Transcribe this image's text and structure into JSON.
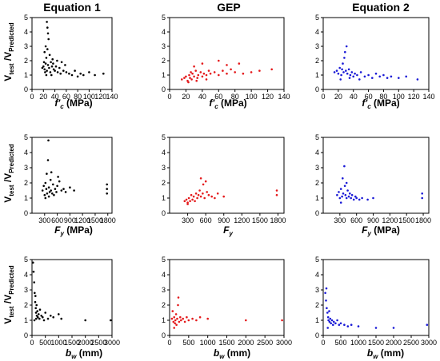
{
  "figure": {
    "column_titles": [
      "Equation 1",
      "GEP",
      "Equation 2"
    ],
    "y_label_main": "V",
    "y_label_sub_test": "test",
    "y_label_sep": " /V",
    "y_label_sub_pred": "Predicted",
    "x_labels": [
      {
        "main": "f′",
        "sub": "c",
        "unit": " (MPa)"
      },
      {
        "main": "F",
        "sub": "y",
        "unit": " (MPa)"
      },
      {
        "main": "b",
        "sub": "w",
        "unit": " (mm)"
      }
    ],
    "colors": {
      "Equation 1": "#000000",
      "GEP": "#e41a1c",
      "Equation 2": "#1a1ad6"
    }
  },
  "chart_data": [
    {
      "type": "scatter",
      "row": 0,
      "col": 0,
      "title": "Equation 1",
      "xlabel": "f′c (MPa)",
      "ylabel": "Vtest /VPredicted",
      "xlim": [
        0,
        140
      ],
      "ylim": [
        0,
        5
      ],
      "xticks": [
        "0",
        "20",
        "40",
        "60",
        "80",
        "100",
        "120",
        "140"
      ],
      "yticks": [
        "0",
        "1",
        "2",
        "3",
        "4",
        "5"
      ],
      "color": "#000000",
      "points": [
        [
          18,
          1.5
        ],
        [
          20,
          1.6
        ],
        [
          22,
          1.4
        ],
        [
          24,
          1.8
        ],
        [
          25,
          2.2
        ],
        [
          26,
          1.3
        ],
        [
          27,
          2.8
        ],
        [
          28,
          1.7
        ],
        [
          29,
          3.5
        ],
        [
          30,
          1.5
        ],
        [
          31,
          2.4
        ],
        [
          32,
          1.2
        ],
        [
          33,
          1.9
        ],
        [
          35,
          1.6
        ],
        [
          36,
          2.1
        ],
        [
          38,
          1.4
        ],
        [
          40,
          1.3
        ],
        [
          42,
          1.6
        ],
        [
          45,
          1.2
        ],
        [
          48,
          1.5
        ],
        [
          50,
          1.1
        ],
        [
          55,
          1.3
        ],
        [
          58,
          1.7
        ],
        [
          60,
          1.2
        ],
        [
          65,
          1.1
        ],
        [
          70,
          1.0
        ],
        [
          75,
          1.3
        ],
        [
          80,
          0.9
        ],
        [
          85,
          1.1
        ],
        [
          90,
          1.0
        ],
        [
          100,
          1.2
        ],
        [
          110,
          1.0
        ],
        [
          125,
          1.1
        ],
        [
          22,
          2.6
        ],
        [
          24,
          3.0
        ],
        [
          26,
          4.7
        ],
        [
          27,
          4.3
        ],
        [
          28,
          3.9
        ],
        [
          21,
          1.9
        ],
        [
          23,
          1.2
        ],
        [
          25,
          1.0
        ],
        [
          34,
          1.0
        ],
        [
          37,
          1.8
        ],
        [
          44,
          2.0
        ],
        [
          52,
          1.9
        ]
      ]
    },
    {
      "type": "scatter",
      "row": 0,
      "col": 1,
      "title": "GEP",
      "xlabel": "f′c (MPa)",
      "ylabel": "",
      "xlim": [
        0,
        140
      ],
      "ylim": [
        0,
        5
      ],
      "xticks": [
        "0",
        "20",
        "40",
        "60",
        "80",
        "100",
        "120",
        "140"
      ],
      "yticks": [
        "0",
        "1",
        "2",
        "3",
        "4",
        "5"
      ],
      "color": "#e41a1c",
      "points": [
        [
          15,
          0.7
        ],
        [
          18,
          0.8
        ],
        [
          20,
          0.9
        ],
        [
          22,
          0.6
        ],
        [
          24,
          1.0
        ],
        [
          25,
          0.8
        ],
        [
          26,
          1.2
        ],
        [
          27,
          0.7
        ],
        [
          28,
          1.1
        ],
        [
          30,
          0.9
        ],
        [
          32,
          1.3
        ],
        [
          34,
          0.8
        ],
        [
          35,
          1.0
        ],
        [
          38,
          1.2
        ],
        [
          40,
          0.9
        ],
        [
          42,
          1.1
        ],
        [
          45,
          1.0
        ],
        [
          48,
          1.3
        ],
        [
          50,
          1.1
        ],
        [
          55,
          1.2
        ],
        [
          60,
          1.0
        ],
        [
          65,
          1.3
        ],
        [
          70,
          1.1
        ],
        [
          75,
          1.4
        ],
        [
          80,
          1.2
        ],
        [
          85,
          1.8
        ],
        [
          90,
          1.1
        ],
        [
          100,
          1.2
        ],
        [
          110,
          1.3
        ],
        [
          125,
          1.4
        ],
        [
          30,
          1.6
        ],
        [
          40,
          1.8
        ],
        [
          60,
          2.0
        ],
        [
          70,
          1.7
        ],
        [
          23,
          0.5
        ],
        [
          33,
          0.6
        ],
        [
          45,
          0.7
        ]
      ]
    },
    {
      "type": "scatter",
      "row": 0,
      "col": 2,
      "title": "Equation 2",
      "xlabel": "f′c (MPa)",
      "ylabel": "",
      "xlim": [
        0,
        140
      ],
      "ylim": [
        0,
        5
      ],
      "xticks": [
        "0",
        "20",
        "40",
        "60",
        "80",
        "100",
        "120",
        "140"
      ],
      "yticks": [
        "0",
        "1",
        "2",
        "3",
        "4",
        "5"
      ],
      "color": "#1a1ad6",
      "points": [
        [
          15,
          1.2
        ],
        [
          18,
          1.3
        ],
        [
          20,
          1.1
        ],
        [
          22,
          1.5
        ],
        [
          24,
          1.0
        ],
        [
          25,
          1.4
        ],
        [
          26,
          1.8
        ],
        [
          27,
          1.2
        ],
        [
          28,
          2.2
        ],
        [
          29,
          2.6
        ],
        [
          30,
          1.3
        ],
        [
          31,
          3.0
        ],
        [
          32,
          1.1
        ],
        [
          34,
          1.4
        ],
        [
          36,
          1.0
        ],
        [
          38,
          1.2
        ],
        [
          40,
          0.9
        ],
        [
          42,
          1.1
        ],
        [
          45,
          1.0
        ],
        [
          50,
          1.2
        ],
        [
          55,
          0.9
        ],
        [
          60,
          1.0
        ],
        [
          65,
          0.8
        ],
        [
          70,
          1.1
        ],
        [
          75,
          0.9
        ],
        [
          80,
          1.0
        ],
        [
          85,
          0.8
        ],
        [
          90,
          0.9
        ],
        [
          100,
          0.8
        ],
        [
          110,
          0.9
        ],
        [
          125,
          0.7
        ],
        [
          23,
          0.7
        ],
        [
          35,
          0.8
        ],
        [
          48,
          0.7
        ]
      ]
    },
    {
      "type": "scatter",
      "row": 1,
      "col": 0,
      "title": "",
      "xlabel": "Fy (MPa)",
      "ylabel": "Vtest /VPredicted",
      "xlim": [
        0,
        1900
      ],
      "ylim": [
        0,
        5
      ],
      "xticks": [
        "300",
        "600",
        "900",
        "1200",
        "1500",
        "1800"
      ],
      "yticks": [
        "0",
        "1",
        "2",
        "3",
        "4",
        "5"
      ],
      "color": "#000000",
      "points": [
        [
          250,
          1.5
        ],
        [
          280,
          1.8
        ],
        [
          300,
          1.2
        ],
        [
          320,
          2.0
        ],
        [
          340,
          1.6
        ],
        [
          350,
          2.6
        ],
        [
          360,
          1.3
        ],
        [
          380,
          3.5
        ],
        [
          390,
          4.8
        ],
        [
          400,
          1.7
        ],
        [
          420,
          1.4
        ],
        [
          440,
          2.2
        ],
        [
          450,
          1.5
        ],
        [
          480,
          1.3
        ],
        [
          500,
          1.9
        ],
        [
          520,
          1.2
        ],
        [
          550,
          1.6
        ],
        [
          580,
          1.4
        ],
        [
          600,
          1.8
        ],
        [
          650,
          2.1
        ],
        [
          700,
          1.5
        ],
        [
          750,
          1.6
        ],
        [
          800,
          1.4
        ],
        [
          900,
          1.7
        ],
        [
          1000,
          1.5
        ],
        [
          1780,
          1.3
        ],
        [
          1780,
          1.6
        ],
        [
          1780,
          1.9
        ],
        [
          320,
          1.0
        ],
        [
          400,
          1.1
        ],
        [
          460,
          2.7
        ],
        [
          620,
          2.4
        ]
      ]
    },
    {
      "type": "scatter",
      "row": 1,
      "col": 1,
      "title": "",
      "xlabel": "Fy",
      "ylabel": "",
      "xlim": [
        0,
        1900
      ],
      "ylim": [
        0,
        5
      ],
      "xticks": [
        "300",
        "600",
        "900",
        "1200",
        "1500",
        "1800"
      ],
      "yticks": [
        "0",
        "1",
        "2",
        "3",
        "4",
        "5"
      ],
      "color": "#e41a1c",
      "points": [
        [
          250,
          0.8
        ],
        [
          280,
          0.9
        ],
        [
          300,
          0.7
        ],
        [
          320,
          1.0
        ],
        [
          340,
          0.8
        ],
        [
          360,
          1.2
        ],
        [
          380,
          0.9
        ],
        [
          400,
          1.1
        ],
        [
          420,
          0.8
        ],
        [
          440,
          1.3
        ],
        [
          460,
          1.0
        ],
        [
          480,
          1.2
        ],
        [
          500,
          1.5
        ],
        [
          520,
          1.1
        ],
        [
          550,
          1.3
        ],
        [
          580,
          1.0
        ],
        [
          600,
          2.1
        ],
        [
          620,
          1.4
        ],
        [
          650,
          1.2
        ],
        [
          700,
          1.1
        ],
        [
          750,
          1.0
        ],
        [
          800,
          1.3
        ],
        [
          900,
          1.1
        ],
        [
          1780,
          1.2
        ],
        [
          1780,
          1.5
        ],
        [
          520,
          2.3
        ],
        [
          560,
          1.9
        ],
        [
          300,
          0.6
        ]
      ]
    },
    {
      "type": "scatter",
      "row": 1,
      "col": 2,
      "title": "",
      "xlabel": "Fy (MPa)",
      "ylabel": "",
      "xlim": [
        0,
        1900
      ],
      "ylim": [
        0,
        5
      ],
      "xticks": [
        "300",
        "600",
        "900",
        "1200",
        "1500",
        "1800"
      ],
      "yticks": [
        "0",
        "1",
        "2",
        "3",
        "4",
        "5"
      ],
      "color": "#1a1ad6",
      "points": [
        [
          250,
          1.2
        ],
        [
          280,
          1.4
        ],
        [
          300,
          1.0
        ],
        [
          320,
          1.6
        ],
        [
          340,
          1.1
        ],
        [
          350,
          2.3
        ],
        [
          360,
          1.3
        ],
        [
          380,
          3.1
        ],
        [
          390,
          1.8
        ],
        [
          400,
          1.2
        ],
        [
          420,
          1.0
        ],
        [
          440,
          1.5
        ],
        [
          460,
          1.1
        ],
        [
          480,
          1.3
        ],
        [
          500,
          1.0
        ],
        [
          520,
          1.2
        ],
        [
          550,
          0.9
        ],
        [
          580,
          1.1
        ],
        [
          600,
          1.0
        ],
        [
          650,
          0.9
        ],
        [
          700,
          1.0
        ],
        [
          800,
          0.9
        ],
        [
          900,
          1.0
        ],
        [
          1780,
          1.0
        ],
        [
          1780,
          1.3
        ],
        [
          320,
          0.7
        ],
        [
          420,
          2.0
        ]
      ]
    },
    {
      "type": "scatter",
      "row": 2,
      "col": 0,
      "title": "",
      "xlabel": "bw (mm)",
      "ylabel": "Vtest /VPredicted",
      "xlim": [
        0,
        3000
      ],
      "ylim": [
        0,
        5
      ],
      "xticks": [
        "0",
        "500",
        "1000",
        "1500",
        "2000",
        "2500",
        "3000"
      ],
      "yticks": [
        "0",
        "1",
        "2",
        "3",
        "4",
        "5"
      ],
      "color": "#000000",
      "points": [
        [
          40,
          4.8
        ],
        [
          60,
          4.2
        ],
        [
          80,
          3.5
        ],
        [
          100,
          2.8
        ],
        [
          120,
          2.2
        ],
        [
          140,
          1.8
        ],
        [
          150,
          1.5
        ],
        [
          170,
          2.0
        ],
        [
          180,
          1.3
        ],
        [
          200,
          1.6
        ],
        [
          220,
          1.2
        ],
        [
          250,
          1.4
        ],
        [
          280,
          1.1
        ],
        [
          300,
          1.7
        ],
        [
          350,
          1.3
        ],
        [
          400,
          1.2
        ],
        [
          450,
          1.0
        ],
        [
          500,
          1.5
        ],
        [
          600,
          1.1
        ],
        [
          700,
          1.3
        ],
        [
          800,
          1.2
        ],
        [
          1000,
          1.4
        ],
        [
          1100,
          1.1
        ],
        [
          2000,
          1.0
        ],
        [
          2950,
          1.0
        ],
        [
          90,
          1.0
        ],
        [
          130,
          2.6
        ],
        [
          160,
          1.1
        ]
      ]
    },
    {
      "type": "scatter",
      "row": 2,
      "col": 1,
      "title": "",
      "xlabel": "bw (mm)",
      "ylabel": "",
      "xlim": [
        0,
        3000
      ],
      "ylim": [
        0,
        5
      ],
      "xticks": [
        "0",
        "500",
        "1000",
        "1500",
        "2000",
        "2500",
        "3000"
      ],
      "yticks": [
        "0",
        "1",
        "2",
        "3",
        "4",
        "5"
      ],
      "color": "#e41a1c",
      "points": [
        [
          60,
          1.1
        ],
        [
          80,
          1.6
        ],
        [
          100,
          0.9
        ],
        [
          120,
          1.2
        ],
        [
          140,
          0.8
        ],
        [
          150,
          1.0
        ],
        [
          170,
          1.4
        ],
        [
          180,
          0.7
        ],
        [
          200,
          1.1
        ],
        [
          220,
          2.0
        ],
        [
          250,
          0.9
        ],
        [
          280,
          1.2
        ],
        [
          300,
          1.0
        ],
        [
          350,
          1.1
        ],
        [
          400,
          0.9
        ],
        [
          450,
          1.2
        ],
        [
          500,
          1.0
        ],
        [
          600,
          1.1
        ],
        [
          700,
          1.0
        ],
        [
          800,
          1.2
        ],
        [
          1000,
          1.1
        ],
        [
          2000,
          1.0
        ],
        [
          2950,
          1.0
        ],
        [
          230,
          2.5
        ],
        [
          120,
          0.5
        ]
      ]
    },
    {
      "type": "scatter",
      "row": 2,
      "col": 2,
      "title": "",
      "xlabel": "bw (mm)",
      "ylabel": "",
      "xlim": [
        0,
        3000
      ],
      "ylim": [
        0,
        5
      ],
      "xticks": [
        "0",
        "500",
        "1000",
        "1500",
        "2000",
        "2500",
        "3000"
      ],
      "yticks": [
        "0",
        "1",
        "2",
        "3",
        "4",
        "5"
      ],
      "color": "#1a1ad6",
      "points": [
        [
          60,
          2.8
        ],
        [
          80,
          2.3
        ],
        [
          100,
          1.8
        ],
        [
          120,
          1.5
        ],
        [
          140,
          1.2
        ],
        [
          150,
          1.0
        ],
        [
          170,
          1.6
        ],
        [
          180,
          0.9
        ],
        [
          200,
          1.1
        ],
        [
          220,
          0.8
        ],
        [
          250,
          1.0
        ],
        [
          280,
          0.7
        ],
        [
          300,
          0.9
        ],
        [
          350,
          0.8
        ],
        [
          400,
          1.0
        ],
        [
          450,
          0.7
        ],
        [
          500,
          0.8
        ],
        [
          600,
          0.7
        ],
        [
          700,
          0.6
        ],
        [
          800,
          0.7
        ],
        [
          1000,
          0.6
        ],
        [
          1500,
          0.5
        ],
        [
          2000,
          0.5
        ],
        [
          2950,
          0.7
        ],
        [
          90,
          3.1
        ],
        [
          130,
          0.5
        ]
      ]
    }
  ]
}
